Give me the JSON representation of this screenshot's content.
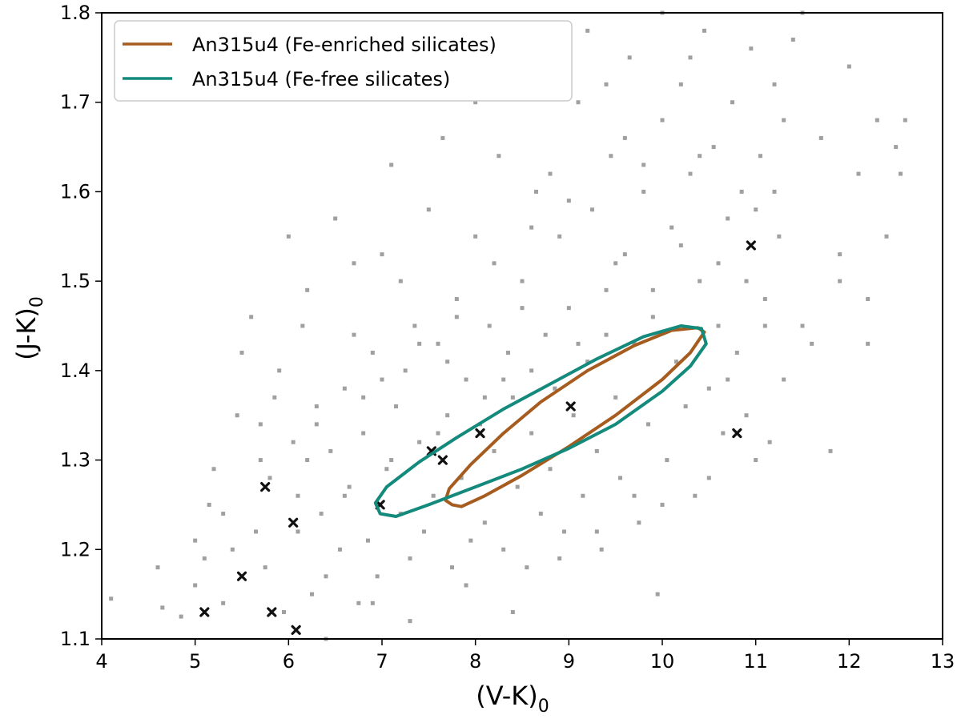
{
  "chart_data": {
    "type": "scatter",
    "xlabel_main": "(V-K)",
    "xlabel_sub": "0",
    "ylabel_main": "(J-K)",
    "ylabel_sub": "0",
    "xlim": [
      4,
      13
    ],
    "ylim": [
      1.1,
      1.8
    ],
    "xticks": [
      4,
      5,
      6,
      7,
      8,
      9,
      10,
      11,
      12,
      13
    ],
    "xtick_labels": [
      "4",
      "5",
      "6",
      "7",
      "8",
      "9",
      "10",
      "11",
      "12",
      "13"
    ],
    "yticks": [
      1.1,
      1.2,
      1.3,
      1.4,
      1.5,
      1.6,
      1.7,
      1.8
    ],
    "ytick_labels": [
      "1.1",
      "1.2",
      "1.3",
      "1.4",
      "1.5",
      "1.6",
      "1.7",
      "1.8"
    ],
    "grid": false,
    "legend_position": "top-left",
    "legend": [
      {
        "label": "An315u4 (Fe-enriched silicates)",
        "color": "#a65c1e"
      },
      {
        "label": "An315u4 (Fe-free silicates)",
        "color": "#138a7c"
      }
    ],
    "loops": [
      {
        "name": "An315u4 (Fe-enriched silicates)",
        "color": "#a65c1e",
        "points": [
          [
            7.75,
            1.25
          ],
          [
            7.85,
            1.248
          ],
          [
            8.1,
            1.26
          ],
          [
            8.5,
            1.283
          ],
          [
            9.0,
            1.315
          ],
          [
            9.5,
            1.35
          ],
          [
            10.0,
            1.39
          ],
          [
            10.3,
            1.42
          ],
          [
            10.45,
            1.443
          ],
          [
            10.38,
            1.448
          ],
          [
            10.1,
            1.445
          ],
          [
            9.7,
            1.428
          ],
          [
            9.2,
            1.4
          ],
          [
            8.7,
            1.365
          ],
          [
            8.3,
            1.33
          ],
          [
            7.95,
            1.295
          ],
          [
            7.72,
            1.268
          ],
          [
            7.68,
            1.255
          ],
          [
            7.75,
            1.25
          ]
        ]
      },
      {
        "name": "An315u4 (Fe-free silicates)",
        "color": "#138a7c",
        "points": [
          [
            7.15,
            1.237
          ],
          [
            7.5,
            1.25
          ],
          [
            8.0,
            1.27
          ],
          [
            8.5,
            1.29
          ],
          [
            9.0,
            1.313
          ],
          [
            9.5,
            1.34
          ],
          [
            10.0,
            1.377
          ],
          [
            10.3,
            1.405
          ],
          [
            10.47,
            1.43
          ],
          [
            10.42,
            1.447
          ],
          [
            10.2,
            1.45
          ],
          [
            9.8,
            1.438
          ],
          [
            9.3,
            1.413
          ],
          [
            8.8,
            1.385
          ],
          [
            8.3,
            1.357
          ],
          [
            7.8,
            1.325
          ],
          [
            7.4,
            1.298
          ],
          [
            7.05,
            1.27
          ],
          [
            6.93,
            1.252
          ],
          [
            6.98,
            1.24
          ],
          [
            7.15,
            1.237
          ]
        ]
      }
    ],
    "series": [
      {
        "name": "background stars",
        "marker": "square",
        "color": "#a0a0a0",
        "points": [
          [
            4.1,
            1.145
          ],
          [
            4.6,
            1.18
          ],
          [
            4.65,
            1.135
          ],
          [
            4.85,
            1.125
          ],
          [
            5.0,
            1.16
          ],
          [
            5.1,
            1.19
          ],
          [
            5.15,
            1.25
          ],
          [
            5.2,
            1.29
          ],
          [
            5.3,
            1.14
          ],
          [
            5.4,
            1.2
          ],
          [
            5.45,
            1.35
          ],
          [
            5.5,
            1.42
          ],
          [
            5.6,
            1.46
          ],
          [
            5.65,
            1.22
          ],
          [
            5.7,
            1.3
          ],
          [
            5.75,
            1.18
          ],
          [
            5.8,
            1.28
          ],
          [
            5.85,
            1.37
          ],
          [
            5.9,
            1.4
          ],
          [
            5.95,
            1.13
          ],
          [
            6.0,
            1.55
          ],
          [
            6.05,
            1.32
          ],
          [
            6.1,
            1.26
          ],
          [
            6.15,
            1.45
          ],
          [
            6.2,
            1.3
          ],
          [
            6.25,
            1.15
          ],
          [
            6.3,
            1.36
          ],
          [
            6.35,
            1.24
          ],
          [
            6.4,
            1.1
          ],
          [
            6.45,
            1.31
          ],
          [
            6.5,
            1.57
          ],
          [
            6.55,
            1.2
          ],
          [
            6.6,
            1.38
          ],
          [
            6.65,
            1.27
          ],
          [
            6.7,
            1.44
          ],
          [
            6.75,
            1.14
          ],
          [
            6.8,
            1.33
          ],
          [
            6.85,
            1.21
          ],
          [
            6.9,
            1.42
          ],
          [
            6.95,
            1.17
          ],
          [
            7.0,
            1.53
          ],
          [
            7.05,
            1.29
          ],
          [
            7.1,
            1.63
          ],
          [
            7.15,
            1.36
          ],
          [
            7.2,
            1.24
          ],
          [
            7.25,
            1.4
          ],
          [
            7.3,
            1.19
          ],
          [
            7.35,
            1.45
          ],
          [
            7.4,
            1.32
          ],
          [
            7.45,
            1.22
          ],
          [
            7.5,
            1.58
          ],
          [
            7.55,
            1.26
          ],
          [
            7.6,
            1.43
          ],
          [
            7.65,
            1.66
          ],
          [
            7.7,
            1.35
          ],
          [
            7.75,
            1.18
          ],
          [
            7.8,
            1.48
          ],
          [
            7.85,
            1.28
          ],
          [
            7.9,
            1.39
          ],
          [
            7.95,
            1.21
          ],
          [
            8.0,
            1.55
          ],
          [
            8.05,
            1.34
          ],
          [
            8.1,
            1.23
          ],
          [
            8.15,
            1.45
          ],
          [
            8.2,
            1.31
          ],
          [
            8.25,
            1.64
          ],
          [
            8.3,
            1.2
          ],
          [
            8.35,
            1.42
          ],
          [
            8.4,
            1.37
          ],
          [
            8.45,
            1.27
          ],
          [
            8.5,
            1.5
          ],
          [
            8.55,
            1.18
          ],
          [
            8.6,
            1.33
          ],
          [
            8.65,
            1.6
          ],
          [
            8.7,
            1.24
          ],
          [
            8.75,
            1.44
          ],
          [
            8.8,
            1.29
          ],
          [
            8.85,
            1.38
          ],
          [
            8.9,
            1.55
          ],
          [
            8.95,
            1.22
          ],
          [
            9.0,
            1.47
          ],
          [
            9.05,
            1.35
          ],
          [
            9.1,
            1.7
          ],
          [
            9.15,
            1.26
          ],
          [
            9.2,
            1.41
          ],
          [
            9.25,
            1.58
          ],
          [
            9.3,
            1.31
          ],
          [
            9.35,
            1.2
          ],
          [
            9.4,
            1.49
          ],
          [
            9.45,
            1.64
          ],
          [
            9.5,
            1.37
          ],
          [
            9.55,
            1.28
          ],
          [
            9.6,
            1.53
          ],
          [
            9.65,
            1.75
          ],
          [
            9.7,
            1.43
          ],
          [
            9.75,
            1.23
          ],
          [
            9.8,
            1.6
          ],
          [
            9.85,
            1.34
          ],
          [
            9.9,
            1.49
          ],
          [
            9.95,
            1.15
          ],
          [
            10.0,
            1.68
          ],
          [
            10.05,
            1.3
          ],
          [
            10.1,
            1.56
          ],
          [
            10.15,
            1.41
          ],
          [
            10.2,
            1.72
          ],
          [
            10.25,
            1.36
          ],
          [
            10.3,
            1.62
          ],
          [
            10.35,
            1.26
          ],
          [
            10.4,
            1.5
          ],
          [
            10.45,
            1.78
          ],
          [
            10.5,
            1.38
          ],
          [
            10.55,
            1.65
          ],
          [
            10.6,
            1.45
          ],
          [
            10.65,
            1.33
          ],
          [
            10.7,
            1.57
          ],
          [
            10.75,
            1.7
          ],
          [
            10.8,
            1.42
          ],
          [
            10.85,
            1.6
          ],
          [
            10.9,
            1.5
          ],
          [
            10.95,
            1.76
          ],
          [
            11.0,
            1.3
          ],
          [
            11.05,
            1.64
          ],
          [
            11.1,
            1.48
          ],
          [
            11.15,
            1.32
          ],
          [
            11.2,
            1.72
          ],
          [
            11.25,
            1.55
          ],
          [
            11.3,
            1.68
          ],
          [
            11.4,
            1.77
          ],
          [
            11.5,
            1.8
          ],
          [
            11.6,
            1.43
          ],
          [
            11.7,
            1.66
          ],
          [
            11.8,
            1.31
          ],
          [
            11.9,
            1.53
          ],
          [
            12.0,
            1.74
          ],
          [
            12.1,
            1.62
          ],
          [
            12.2,
            1.43
          ],
          [
            12.3,
            1.68
          ],
          [
            12.4,
            1.55
          ],
          [
            12.5,
            1.65
          ],
          [
            12.55,
            1.62
          ],
          [
            12.6,
            1.68
          ],
          [
            9.2,
            1.78
          ],
          [
            8.3,
            1.75
          ],
          [
            9.4,
            1.72
          ],
          [
            8.0,
            1.7
          ],
          [
            10.0,
            1.8
          ],
          [
            10.3,
            1.75
          ],
          [
            9.6,
            1.66
          ],
          [
            8.8,
            1.62
          ],
          [
            7.2,
            1.5
          ],
          [
            6.7,
            1.52
          ],
          [
            6.2,
            1.49
          ],
          [
            5.7,
            1.34
          ],
          [
            5.3,
            1.24
          ],
          [
            5.0,
            1.21
          ],
          [
            6.4,
            1.17
          ],
          [
            6.9,
            1.14
          ],
          [
            7.3,
            1.12
          ],
          [
            7.9,
            1.16
          ],
          [
            8.4,
            1.13
          ],
          [
            8.9,
            1.19
          ],
          [
            9.3,
            1.22
          ],
          [
            9.7,
            1.26
          ],
          [
            10.0,
            1.25
          ],
          [
            10.5,
            1.28
          ],
          [
            10.9,
            1.35
          ],
          [
            11.3,
            1.39
          ],
          [
            11.5,
            1.45
          ],
          [
            11.9,
            1.5
          ],
          [
            12.2,
            1.48
          ],
          [
            8.6,
            1.4
          ],
          [
            8.1,
            1.37
          ],
          [
            7.6,
            1.33
          ],
          [
            7.1,
            1.3
          ],
          [
            6.6,
            1.26
          ],
          [
            6.1,
            1.22
          ],
          [
            9.9,
            1.46
          ],
          [
            9.1,
            1.43
          ],
          [
            8.3,
            1.39
          ],
          [
            9.5,
            1.52
          ],
          [
            10.2,
            1.54
          ],
          [
            10.6,
            1.52
          ],
          [
            11.0,
            1.58
          ],
          [
            11.2,
            1.6
          ],
          [
            7.4,
            1.43
          ],
          [
            7.8,
            1.46
          ],
          [
            8.2,
            1.52
          ],
          [
            8.6,
            1.56
          ],
          [
            9.0,
            1.59
          ],
          [
            9.8,
            1.63
          ],
          [
            10.4,
            1.64
          ],
          [
            6.3,
            1.34
          ],
          [
            6.8,
            1.37
          ],
          [
            7.0,
            1.39
          ],
          [
            7.7,
            1.41
          ],
          [
            8.5,
            1.47
          ],
          [
            9.4,
            1.44
          ],
          [
            10.7,
            1.39
          ],
          [
            11.1,
            1.45
          ]
        ]
      },
      {
        "name": "marked stars",
        "marker": "x",
        "color": "#111111",
        "points": [
          [
            5.1,
            1.13
          ],
          [
            5.5,
            1.17
          ],
          [
            5.75,
            1.27
          ],
          [
            5.82,
            1.13
          ],
          [
            6.05,
            1.23
          ],
          [
            6.08,
            1.11
          ],
          [
            6.98,
            1.25
          ],
          [
            7.53,
            1.31
          ],
          [
            7.65,
            1.3
          ],
          [
            8.05,
            1.33
          ],
          [
            9.02,
            1.36
          ],
          [
            10.8,
            1.33
          ],
          [
            10.95,
            1.54
          ]
        ]
      }
    ]
  }
}
